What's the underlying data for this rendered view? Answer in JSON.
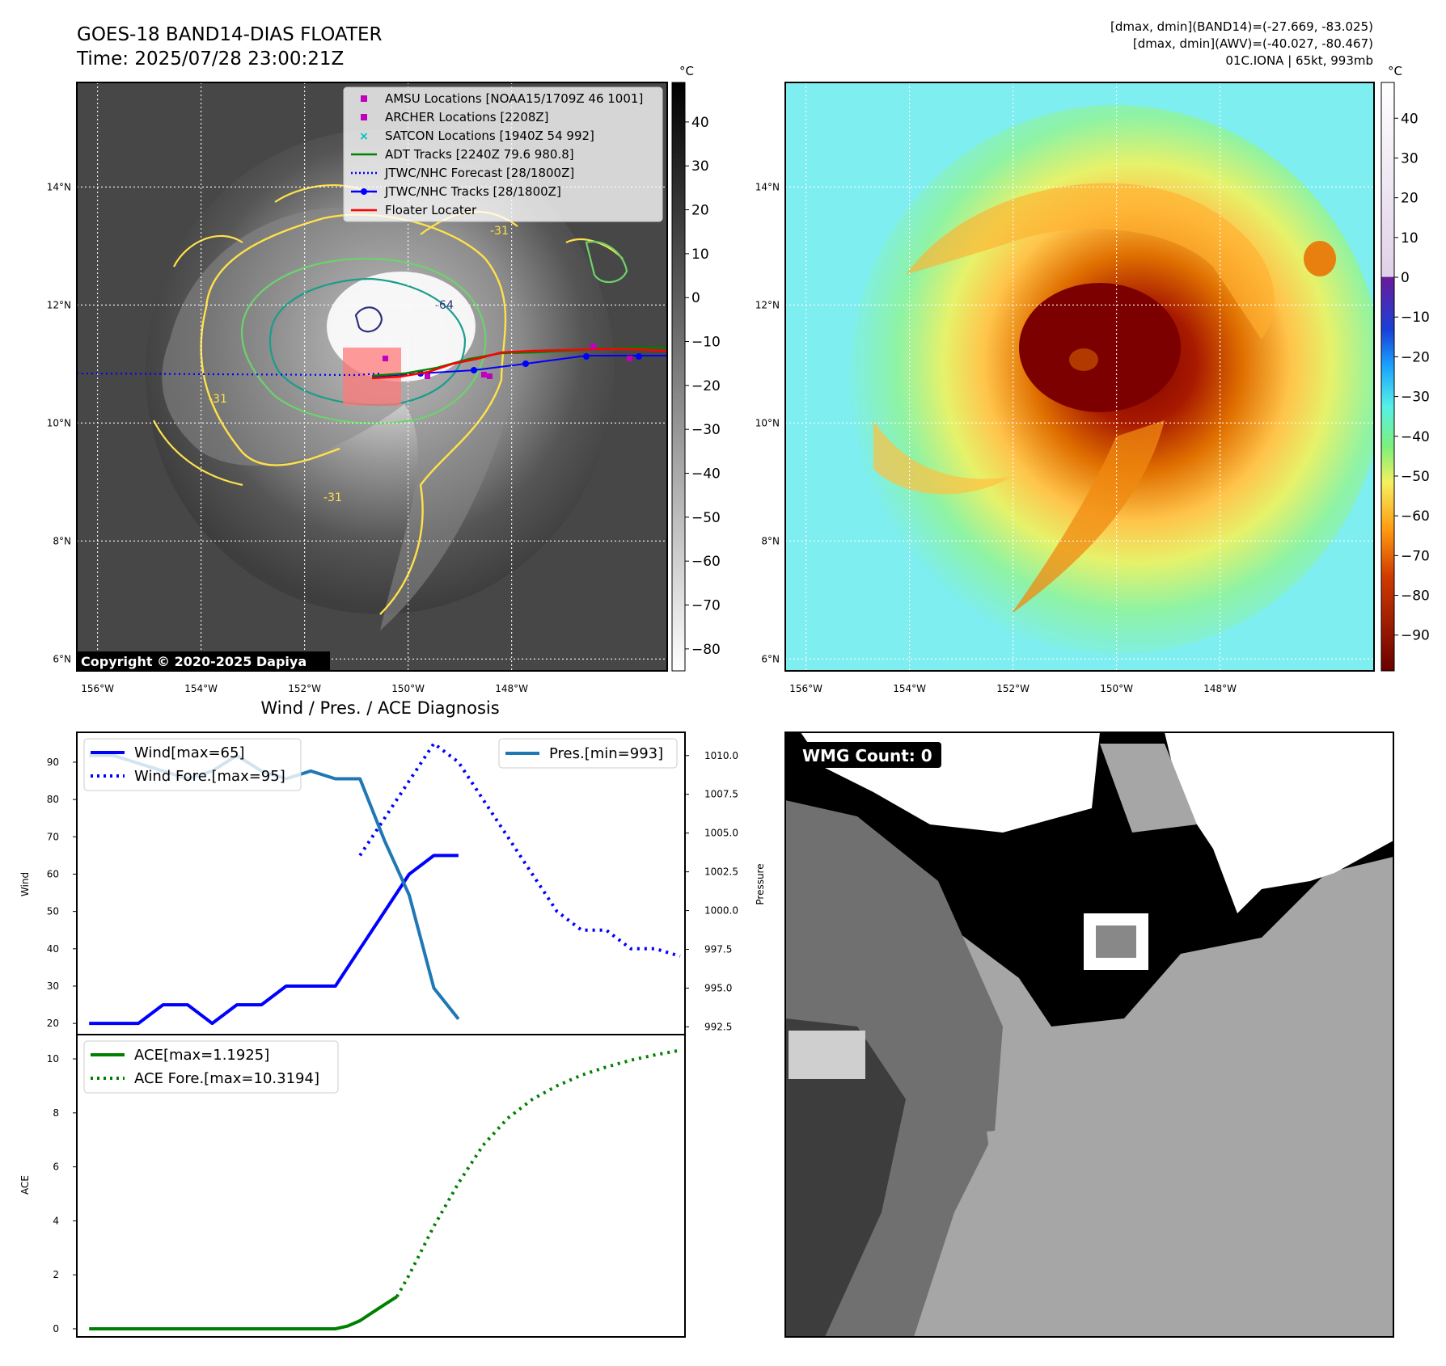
{
  "header": {
    "title_line1": "GOES-18 BAND14-DIAS FLOATER",
    "title_line2": "Time: 2025/07/28 23:00:21Z",
    "info_line1": "[dmax, dmin](BAND14)=(-27.669, -83.025)",
    "info_line2": "[dmax, dmin](AWV)=(-40.027, -80.467)",
    "info_line3": "01C.IONA | 65kt, 993mb"
  },
  "maps": {
    "lon_ticks": [
      "156°W",
      "154°W",
      "152°W",
      "150°W",
      "148°W"
    ],
    "lat_ticks": [
      "14°N",
      "12°N",
      "10°N",
      "8°N",
      "6°N"
    ],
    "lon_values": [
      -156,
      -154,
      -152,
      -150,
      -148
    ],
    "lat_values": [
      14,
      12,
      10,
      8,
      6
    ],
    "copyright": "Copyright © 2020-2025 Dapiya",
    "contour_label": "-31",
    "contour_label_inner": "-64",
    "colors": {
      "contour_yellow": "#ffe14a",
      "contour_green": "#6cd36c",
      "contour_teal": "#1a9d8b",
      "contour_navy": "#2c2f7a",
      "track_red": "#ff0000",
      "track_blue": "#0000ff",
      "adt_green": "#008000",
      "amsu_magenta": "#bf00bf",
      "satcon_cyan": "#00bfbf"
    }
  },
  "colorbar_left": {
    "unit": "°C",
    "ticks": [
      "40",
      "30",
      "20",
      "10",
      "0",
      "−10",
      "−20",
      "−30",
      "−40",
      "−50",
      "−60",
      "−70",
      "−80"
    ],
    "range": [
      -85,
      49
    ]
  },
  "colorbar_right": {
    "unit": "°C",
    "ticks": [
      "40",
      "30",
      "20",
      "10",
      "0",
      "−10",
      "−20",
      "−30",
      "−40",
      "−50",
      "−60",
      "−70",
      "−80",
      "−90"
    ],
    "range": [
      -99,
      49
    ]
  },
  "legend_tracks": [
    {
      "label": "AMSU Locations [NOAA15/1709Z 46 1001]",
      "marker": "square",
      "color": "#bf00bf"
    },
    {
      "label": "ARCHER Locations [2208Z]",
      "marker": "square",
      "color": "#bf00bf"
    },
    {
      "label": "SATCON Locations [1940Z 54 992]",
      "marker": "x",
      "color": "#00bfbf"
    },
    {
      "label": "ADT Tracks [2240Z 79.6 980.8]",
      "marker": "line",
      "color": "#008000"
    },
    {
      "label": "JTWC/NHC Forecast [28/1800Z]",
      "marker": "dotted",
      "color": "#0000ff"
    },
    {
      "label": "JTWC/NHC Tracks [28/1800Z]",
      "marker": "line-dot",
      "color": "#0000ff"
    },
    {
      "label": "Floater Locater",
      "marker": "line",
      "color": "#ff0000"
    }
  ],
  "diagnosis": {
    "title": "Wind / Pres. / ACE Diagnosis",
    "wmg_label": "WMG Count: 0"
  },
  "chart_data": [
    {
      "type": "line",
      "panel": "wind-pressure",
      "ylabel": "Wind",
      "ylabel_right": "Pressure",
      "ylim": [
        17,
        98
      ],
      "ylim_right": [
        992.0,
        1011.5
      ],
      "yticks": [
        20,
        30,
        40,
        50,
        60,
        70,
        80,
        90
      ],
      "yticks_right": [
        "992.5",
        "995.0",
        "997.5",
        "1000.0",
        "1002.5",
        "1005.0",
        "1007.5",
        "1010.0"
      ],
      "xlim": [
        -0.5,
        24.2
      ],
      "legend_left": [
        "Wind[max=65]",
        "Wind Fore.[max=95]"
      ],
      "legend_right": [
        "Pres.[min=993]"
      ],
      "series": [
        {
          "name": "Wind[max=65]",
          "axis": "left",
          "style": "solid",
          "color": "#0000ff",
          "x": [
            0,
            1,
            2,
            3,
            4,
            5,
            6,
            7,
            8,
            9,
            10,
            11,
            12,
            13,
            14,
            15
          ],
          "y": [
            20,
            20,
            20,
            25,
            25,
            20,
            25,
            25,
            30,
            30,
            30,
            40,
            50,
            60,
            65,
            65
          ]
        },
        {
          "name": "Wind Fore.[max=95]",
          "axis": "left",
          "style": "dotted",
          "color": "#0000ff",
          "x": [
            11,
            12,
            13,
            14,
            15,
            16,
            17,
            18,
            19,
            20,
            21,
            22,
            23,
            24
          ],
          "y": [
            65,
            75,
            85,
            95,
            90,
            80,
            70,
            60,
            50,
            45,
            45,
            40,
            40,
            38
          ]
        },
        {
          "name": "Pres.[min=993]",
          "axis": "right",
          "style": "solid",
          "color": "#1f77b4",
          "x": [
            0,
            1,
            2,
            3,
            4,
            5,
            6,
            7,
            8,
            9,
            10,
            11,
            12,
            13,
            14,
            15
          ],
          "y": [
            1010,
            1010,
            1009.5,
            1009,
            1008.5,
            1009,
            1010,
            1009,
            1008.5,
            1009,
            1008.5,
            1008.5,
            1004.5,
            1001,
            995,
            993
          ]
        }
      ]
    },
    {
      "type": "line",
      "panel": "ace",
      "ylabel": "ACE",
      "ylim": [
        -0.3,
        10.9
      ],
      "yticks": [
        0,
        2,
        4,
        6,
        8,
        10
      ],
      "xlim": [
        -0.5,
        24.2
      ],
      "legend": [
        "ACE[max=1.1925]",
        "ACE Fore.[max=10.3194]"
      ],
      "series": [
        {
          "name": "ACE[max=1.1925]",
          "style": "solid",
          "color": "#008000",
          "x": [
            0,
            2,
            4,
            6,
            8,
            9,
            10,
            10.5,
            11,
            11.5,
            12,
            12.5
          ],
          "y": [
            0,
            0,
            0,
            0,
            0,
            0,
            0,
            0.1,
            0.3,
            0.6,
            0.9,
            1.19
          ]
        },
        {
          "name": "ACE Fore.[max=10.3194]",
          "style": "dotted",
          "color": "#008000",
          "x": [
            12.5,
            13,
            14,
            15,
            16,
            17,
            18,
            19,
            20,
            21,
            22,
            23,
            24
          ],
          "y": [
            1.19,
            2.0,
            3.8,
            5.4,
            6.8,
            7.8,
            8.5,
            9.0,
            9.4,
            9.7,
            9.95,
            10.15,
            10.32
          ]
        }
      ]
    }
  ]
}
